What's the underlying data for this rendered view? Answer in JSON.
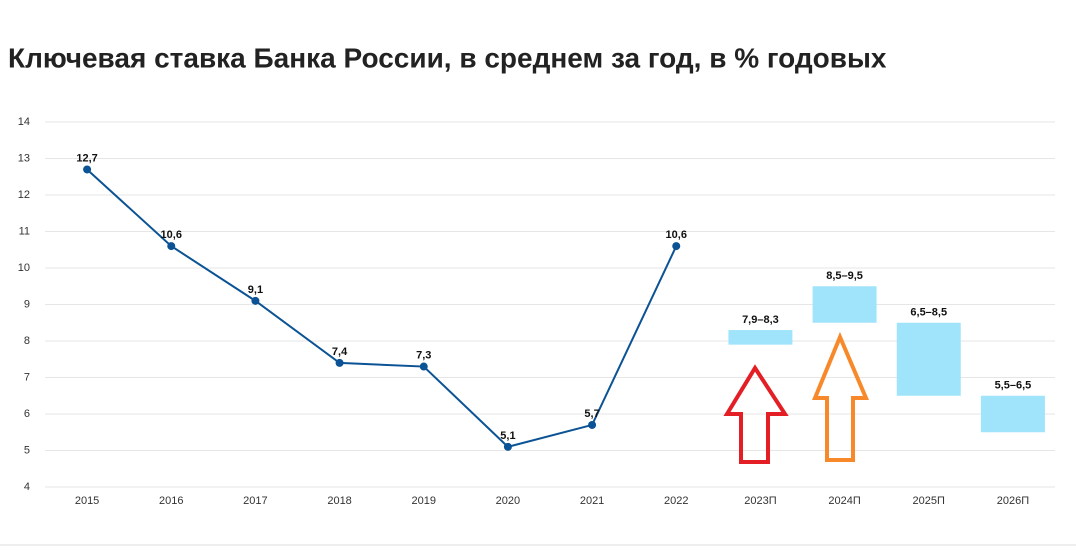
{
  "chart_data": {
    "type": "line",
    "title": "Ключевая ставка Банка России, в среднем за год, в % годовых",
    "categories": [
      "2015",
      "2016",
      "2017",
      "2018",
      "2019",
      "2020",
      "2021",
      "2022",
      "2023П",
      "2024П",
      "2025П",
      "2026П"
    ],
    "series": [
      {
        "color": "#0b5394",
        "values": [
          12.7,
          10.6,
          9.1,
          7.4,
          7.3,
          5.1,
          5.7,
          10.6,
          null,
          null,
          null,
          null
        ],
        "value_labels": [
          "12,7",
          "10,6",
          "9,1",
          "7,4",
          "7,3",
          "5,1",
          "5,7",
          "10,6",
          null,
          null,
          null,
          null
        ]
      }
    ],
    "ranges": {
      "color": "#a0e4fb",
      "low": [
        null,
        null,
        null,
        null,
        null,
        null,
        null,
        null,
        7.9,
        8.5,
        6.5,
        5.5
      ],
      "high": [
        null,
        null,
        null,
        null,
        null,
        null,
        null,
        null,
        8.3,
        9.5,
        8.5,
        6.5
      ],
      "labels": [
        null,
        null,
        null,
        null,
        null,
        null,
        null,
        null,
        "7,9–8,3",
        "8,5–9,5",
        "6,5–8,5",
        "5,5–6,5"
      ]
    },
    "ylim": [
      4,
      14
    ],
    "yticks": [
      4,
      5,
      6,
      7,
      8,
      9,
      10,
      11,
      12,
      13,
      14
    ],
    "grid": true
  }
}
